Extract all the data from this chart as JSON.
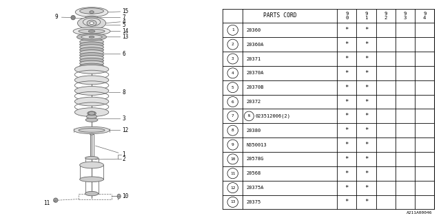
{
  "bg_color": "#ffffff",
  "rows": [
    [
      "1",
      "20360",
      "*",
      "*",
      "",
      "",
      ""
    ],
    [
      "2",
      "20360A",
      "*",
      "*",
      "",
      "",
      ""
    ],
    [
      "3",
      "20371",
      "*",
      "*",
      "",
      "",
      ""
    ],
    [
      "4",
      "20370A",
      "*",
      "*",
      "",
      "",
      ""
    ],
    [
      "5",
      "20370B",
      "*",
      "*",
      "",
      "",
      ""
    ],
    [
      "6",
      "20372",
      "*",
      "*",
      "",
      "",
      ""
    ],
    [
      "7",
      "N023512006(2)",
      "*",
      "*",
      "",
      "",
      ""
    ],
    [
      "8",
      "20380",
      "*",
      "*",
      "",
      "",
      ""
    ],
    [
      "9",
      "N350013",
      "*",
      "*",
      "",
      "",
      ""
    ],
    [
      "10",
      "20578G",
      "*",
      "*",
      "",
      "",
      ""
    ],
    [
      "11",
      "20568",
      "*",
      "*",
      "",
      "",
      ""
    ],
    [
      "12",
      "20375A",
      "*",
      "*",
      "",
      "",
      ""
    ],
    [
      "13",
      "20375",
      "*",
      "*",
      "",
      "",
      ""
    ]
  ],
  "footer": "A211A00046",
  "year_cols": [
    "9\n0",
    "9\n1",
    "9\n2",
    "9\n3",
    "9\n4"
  ],
  "gray": "#666666",
  "dark": "#333333"
}
